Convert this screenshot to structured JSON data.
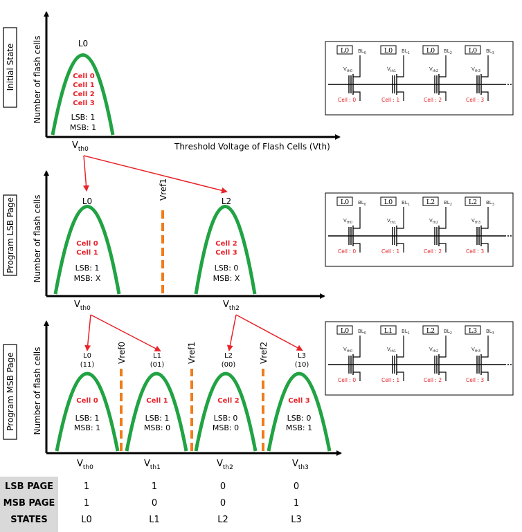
{
  "colors": {
    "curve": "#21a343",
    "cell_text": "#e8232a",
    "arrow": "#e8232a",
    "vref": "#f07c1a",
    "axis": "#000000",
    "table_bg": "#d9d9d9"
  },
  "panel1": {
    "section_label": "Initial State",
    "y_axis_label": "Number of flash cells",
    "x_axis_label": "Threshold Voltage of Flash Cells (Vth)",
    "state_label": "L0",
    "cells": [
      "Cell 0",
      "Cell 1",
      "Cell 2",
      "Cell 3"
    ],
    "lsb": "LSB: 1",
    "msb": "MSB: 1",
    "vth_main": "V",
    "vth_sub": "th0"
  },
  "panel2": {
    "section_label": "Program LSB Page",
    "y_axis_label": "Number of flash cells",
    "vref": "Vref1",
    "states": [
      {
        "label": "L0",
        "cells": [
          "Cell 0",
          "Cell 1"
        ],
        "lsb": "LSB: 1",
        "msb": "MSB: X"
      },
      {
        "label": "L2",
        "cells": [
          "Cell 2",
          "Cell 3"
        ],
        "lsb": "LSB: 0",
        "msb": "MSB: X"
      }
    ],
    "vth": [
      {
        "main": "V",
        "sub": "th0"
      },
      {
        "main": "V",
        "sub": "th2"
      }
    ]
  },
  "panel3": {
    "section_label": "Program MSB Page",
    "y_axis_label": "Number of flash cells",
    "vrefs": [
      "Vref0",
      "Vref1",
      "Vref2"
    ],
    "states": [
      {
        "label": "L0",
        "code": "(11)",
        "cell": "Cell 0",
        "lsb": "LSB: 1",
        "msb": "MSB: 1"
      },
      {
        "label": "L1",
        "code": "(01)",
        "cell": "Cell 1",
        "lsb": "LSB: 1",
        "msb": "MSB: 0"
      },
      {
        "label": "L2",
        "code": "(00)",
        "cell": "Cell 2",
        "lsb": "LSB: 0",
        "msb": "MSB: 0"
      },
      {
        "label": "L3",
        "code": "(10)",
        "cell": "Cell 3",
        "lsb": "LSB: 0",
        "msb": "MSB: 1"
      }
    ],
    "vth": [
      {
        "main": "V",
        "sub": "th0"
      },
      {
        "main": "V",
        "sub": "th1"
      },
      {
        "main": "V",
        "sub": "th2"
      },
      {
        "main": "V",
        "sub": "th3"
      }
    ]
  },
  "circuits": [
    {
      "levels": [
        "L0",
        "L0",
        "L0",
        "L0"
      ],
      "vth": [
        "th0",
        "th1",
        "th2",
        "th3"
      ]
    },
    {
      "levels": [
        "L0",
        "L0",
        "L2",
        "L2"
      ],
      "vth": [
        "th0",
        "th1",
        "th2",
        "th3"
      ]
    },
    {
      "levels": [
        "L0",
        "L1",
        "L2",
        "L3"
      ],
      "vth": [
        "th0",
        "th1",
        "th2",
        "th3"
      ]
    }
  ],
  "circuit_text": {
    "cells": [
      "Cell : 0",
      "Cell : 1",
      "Cell : 2",
      "Cell : 3"
    ],
    "bl_main": "BL",
    "bl_subs": [
      "0",
      "1",
      "2",
      "3"
    ],
    "v_main": "V"
  },
  "table": {
    "rows": [
      {
        "label": "LSB PAGE",
        "values": [
          "1",
          "1",
          "0",
          "0"
        ]
      },
      {
        "label": "MSB PAGE",
        "values": [
          "1",
          "0",
          "0",
          "1"
        ]
      },
      {
        "label": "STATES",
        "values": [
          "L0",
          "L1",
          "L2",
          "L3"
        ]
      }
    ]
  }
}
